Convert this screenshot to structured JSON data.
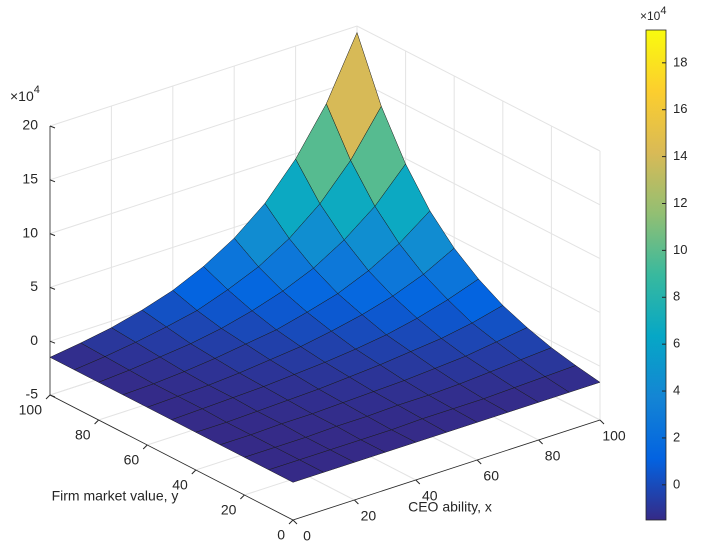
{
  "chart_data": {
    "type": "surface",
    "xlabel": "CEO ability, x",
    "ylabel": "Firm market value, y",
    "x": [
      0,
      10,
      20,
      30,
      40,
      50,
      60,
      70,
      80,
      90,
      100
    ],
    "y": [
      0,
      10,
      20,
      30,
      40,
      50,
      60,
      70,
      80,
      90,
      100
    ],
    "z": [
      [
        -1.5,
        -1.5,
        -1.5,
        -1.5,
        -1.5,
        -1.5,
        -1.5,
        -1.5,
        -1.5,
        -1.5,
        -1.5
      ],
      [
        -1.5,
        -1.5,
        -1.5,
        -1.5,
        -1.5,
        -1.4,
        -1.4,
        -1.4,
        -1.3,
        -1.2,
        -1.1
      ],
      [
        -1.5,
        -1.5,
        -1.5,
        -1.4,
        -1.4,
        -1.3,
        -1.3,
        -1.2,
        -1.0,
        -0.8,
        -0.6
      ],
      [
        -1.5,
        -1.5,
        -1.4,
        -1.4,
        -1.3,
        -1.2,
        -1.1,
        -0.9,
        -0.7,
        -0.3,
        0.1
      ],
      [
        -1.5,
        -1.5,
        -1.4,
        -1.3,
        -1.2,
        -1.0,
        -0.8,
        -0.5,
        -0.2,
        0.3,
        1.0
      ],
      [
        -1.5,
        -1.4,
        -1.3,
        -1.2,
        -1.0,
        -0.8,
        -0.5,
        -0.1,
        0.5,
        1.3,
        2.3
      ],
      [
        -1.5,
        -1.4,
        -1.3,
        -1.1,
        -0.8,
        -0.5,
        0.0,
        0.6,
        1.4,
        2.5,
        4.0
      ],
      [
        -1.5,
        -1.4,
        -1.2,
        -0.9,
        -0.5,
        -0.1,
        0.6,
        1.4,
        2.6,
        4.2,
        6.3
      ],
      [
        -1.5,
        -1.3,
        -1.0,
        -0.7,
        -0.2,
        0.5,
        1.4,
        2.6,
        4.3,
        6.5,
        9.5
      ],
      [
        -1.5,
        -1.2,
        -0.8,
        -0.3,
        0.3,
        1.3,
        2.5,
        4.2,
        6.5,
        9.6,
        13.7
      ],
      [
        -1.5,
        -1.1,
        -0.6,
        0.1,
        1.0,
        2.3,
        4.0,
        6.3,
        9.5,
        13.7,
        19.4
      ]
    ],
    "xlim": [
      0,
      100
    ],
    "ylim": [
      0,
      100
    ],
    "zlim": [
      -5,
      20
    ],
    "xticks": [
      0,
      20,
      40,
      60,
      80,
      100
    ],
    "yticks": [
      0,
      20,
      40,
      60,
      80,
      100
    ],
    "zticks": [
      -5,
      0,
      5,
      10,
      15,
      20
    ],
    "z_multiplier": {
      "base": "×10",
      "power": "4"
    },
    "grid": true,
    "edge_color": "#1a1a1a",
    "colormap": [
      "#352a87",
      "#0363e1",
      "#1485d4",
      "#06a7c6",
      "#38b99e",
      "#92bf73",
      "#d9ba56",
      "#fcce2e",
      "#f9fb0e"
    ],
    "colorbar": {
      "clim": [
        -1.5,
        19.4
      ],
      "ticks": [
        0,
        2,
        4,
        6,
        8,
        10,
        12,
        14,
        16,
        18
      ],
      "multiplier": {
        "base": "×10",
        "power": "4"
      }
    }
  }
}
